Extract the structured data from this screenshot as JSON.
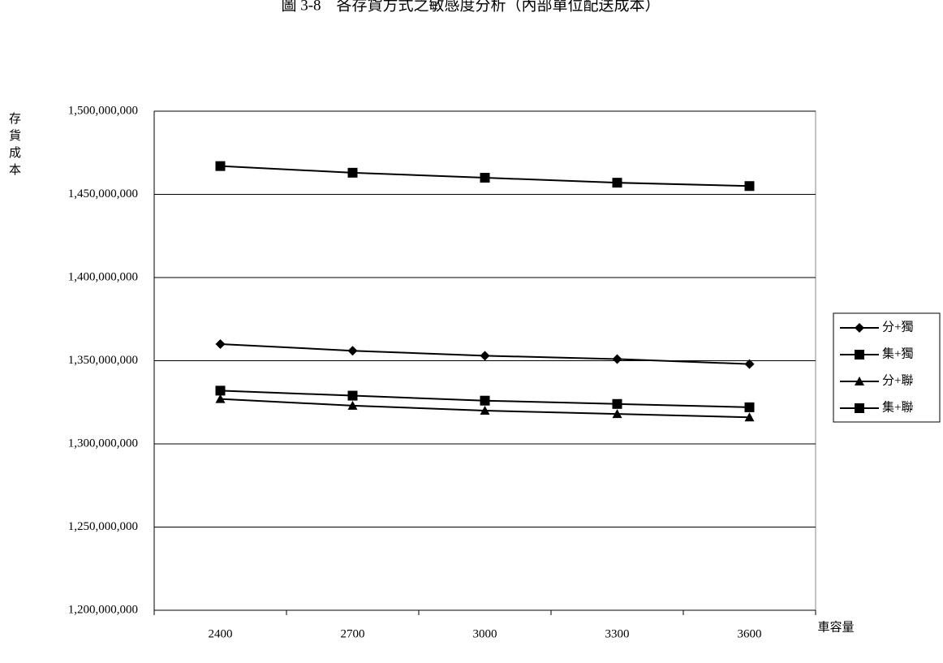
{
  "chart_data": {
    "type": "line",
    "title": "圖 3-8　各存貨方式之敏感度分析（內部單位配送成本）",
    "y_label": "存貨成本",
    "x_label": "車容量",
    "categories": [
      "2400",
      "2700",
      "3000",
      "3300",
      "3600"
    ],
    "series": [
      {
        "name": "分+獨",
        "color": "#000000",
        "marker": "diamond",
        "values": [
          1360000000,
          1356000000,
          1353000000,
          1351000000,
          1348000000
        ]
      },
      {
        "name": "集+獨",
        "color": "#000000",
        "marker": "square",
        "values": [
          1467000000,
          1463000000,
          1460000000,
          1457000000,
          1455000000
        ]
      },
      {
        "name": "分+聯",
        "color": "#000000",
        "marker": "triangle",
        "values": [
          1327000000,
          1323000000,
          1320000000,
          1318000000,
          1316000000
        ]
      },
      {
        "name": "集+聯",
        "color": "#000000",
        "marker": "square",
        "values": [
          1332000000,
          1329000000,
          1326000000,
          1324000000,
          1322000000
        ]
      }
    ],
    "ylim": [
      1200000000,
      1500000000
    ],
    "yticks": [
      {
        "value": 1200000000,
        "label": "1,200,000,000"
      },
      {
        "value": 1250000000,
        "label": "1,250,000,000"
      },
      {
        "value": 1300000000,
        "label": "1,300,000,000"
      },
      {
        "value": 1350000000,
        "label": "1,350,000,000"
      },
      {
        "value": 1400000000,
        "label": "1,400,000,000"
      },
      {
        "value": 1450000000,
        "label": "1,450,000,000"
      },
      {
        "value": 1500000000,
        "label": "1,500,000,000"
      }
    ],
    "grid": true,
    "legend": "right"
  }
}
